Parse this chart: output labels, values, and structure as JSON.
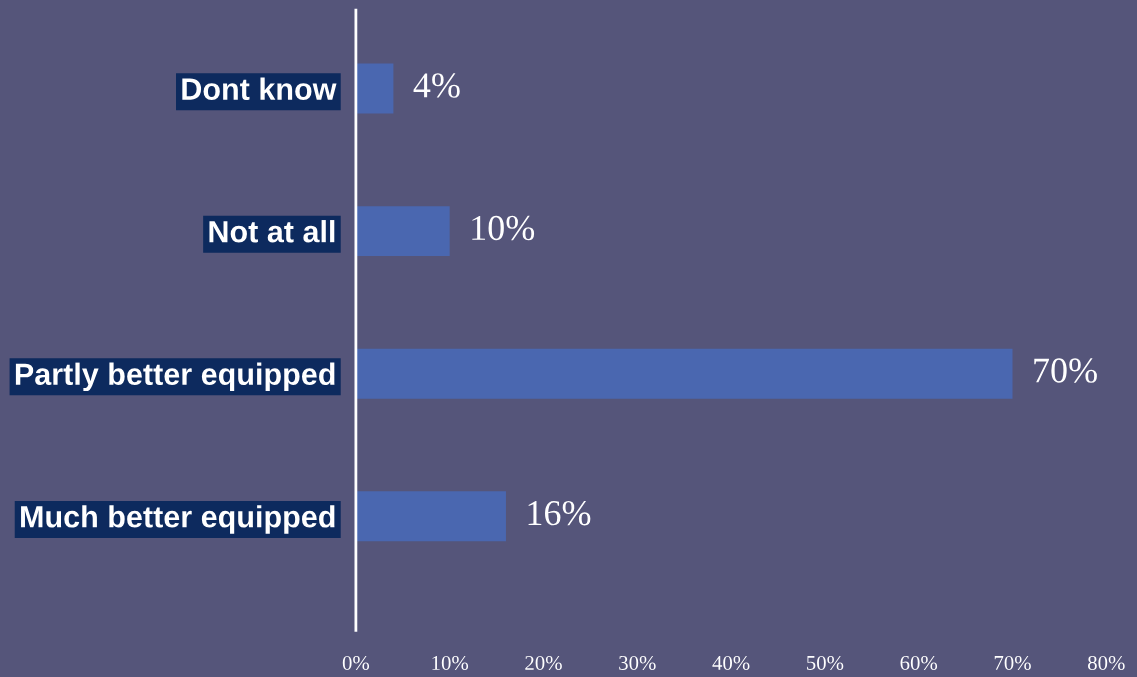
{
  "chart_data": {
    "type": "bar",
    "orientation": "horizontal",
    "categories": [
      "Dont know",
      "Not at all",
      "Partly better equipped",
      "Much better equipped"
    ],
    "values": [
      4,
      10,
      70,
      16
    ],
    "value_labels": [
      "4%",
      "10%",
      "70%",
      "16%"
    ],
    "color": "#4a67b0",
    "xlim": [
      0,
      80
    ],
    "xticks": [
      {
        "value": 0,
        "label": "0%"
      },
      {
        "value": 10,
        "label": "10%"
      },
      {
        "value": 20,
        "label": "20%"
      },
      {
        "value": 30,
        "label": "30%"
      },
      {
        "value": 40,
        "label": "40%"
      },
      {
        "value": 50,
        "label": "50%"
      },
      {
        "value": 60,
        "label": "60%"
      },
      {
        "value": 70,
        "label": "70%"
      },
      {
        "value": 80,
        "label": "80%"
      }
    ],
    "grid": false,
    "legend": false
  }
}
